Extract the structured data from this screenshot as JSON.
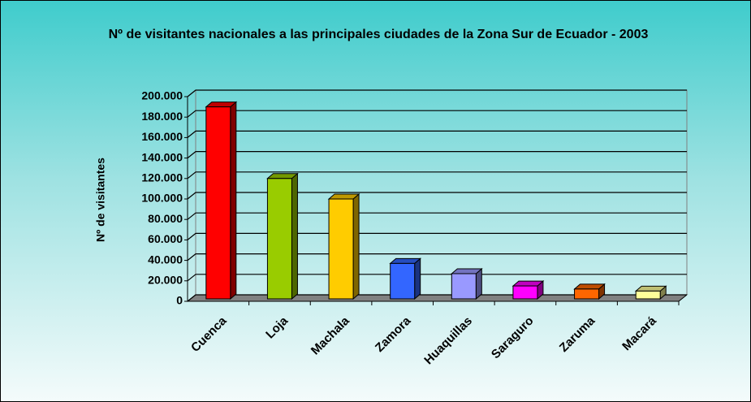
{
  "chart_data": {
    "type": "bar3d",
    "title": "Nº de visitantes nacionales a las principales ciudades de la Zona Sur de Ecuador - 2003",
    "y_label": "Nº de visitantes",
    "categories": [
      "Cuenca",
      "Loja",
      "Machala",
      "Zamora",
      "Huaquillas",
      "Saraguro",
      "Zaruma",
      "Macará"
    ],
    "values": [
      190000,
      120000,
      100000,
      37000,
      27000,
      15000,
      12000,
      10000
    ],
    "colors": [
      "#ff0000",
      "#99cc00",
      "#ffcc00",
      "#3366ff",
      "#9999ff",
      "#ff00ff",
      "#ff6600",
      "#ffff99"
    ],
    "ylim": [
      0,
      200000
    ],
    "yticks": [
      0,
      {
        "value": 20000,
        "label": "20.000"
      },
      {
        "value": 40000,
        "label": "40.000"
      },
      {
        "value": 60000,
        "label": "60.000"
      },
      {
        "value": 80000,
        "label": "80.000"
      },
      {
        "value": 100000,
        "label": "100.000"
      },
      {
        "value": 120000,
        "label": "120.000"
      },
      {
        "value": 140000,
        "label": "140.000"
      },
      {
        "value": 160000,
        "label": "160.000"
      },
      {
        "value": 180000,
        "label": "180.000"
      },
      {
        "value": 200000,
        "label": "200.000"
      }
    ],
    "grid": true
  }
}
